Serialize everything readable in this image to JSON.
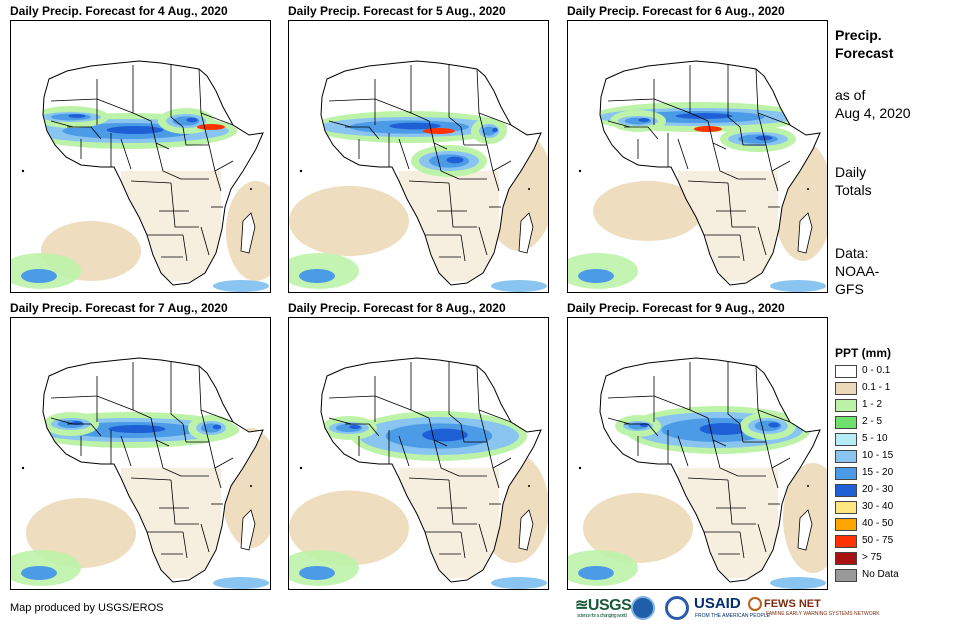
{
  "panels": [
    {
      "title": "Daily Precip. Forecast for 4 Aug., 2020",
      "day": 4
    },
    {
      "title": "Daily Precip. Forecast for 5 Aug., 2020",
      "day": 5
    },
    {
      "title": "Daily Precip. Forecast for 6 Aug., 2020",
      "day": 6
    },
    {
      "title": "Daily Precip. Forecast for 7 Aug., 2020",
      "day": 7
    },
    {
      "title": "Daily Precip. Forecast for 8 Aug., 2020",
      "day": 8
    },
    {
      "title": "Daily Precip. Forecast for 9 Aug., 2020",
      "day": 9
    }
  ],
  "sidebar": {
    "title_line1": "Precip.",
    "title_line2": "Forecast",
    "asof_line1": "as of",
    "asof_line2": "Aug 4, 2020",
    "totals_line1": "Daily",
    "totals_line2": "Totals",
    "data_line1": "Data:",
    "data_line2": "NOAA-",
    "data_line3": "GFS"
  },
  "legend": {
    "title": "PPT (mm)",
    "items": [
      {
        "label": "0 - 0.1",
        "color": "#ffffff"
      },
      {
        "label": "0.1 - 1",
        "color": "#ecd9b8"
      },
      {
        "label": "1 - 2",
        "color": "#bdf3a8"
      },
      {
        "label": "2 - 5",
        "color": "#6fe06c"
      },
      {
        "label": "5 - 10",
        "color": "#b6ecf6"
      },
      {
        "label": "10 - 15",
        "color": "#89c5f0"
      },
      {
        "label": "15 - 20",
        "color": "#4c9be6"
      },
      {
        "label": "20 - 30",
        "color": "#1f5fd6"
      },
      {
        "label": "30 - 40",
        "color": "#ffe680"
      },
      {
        "label": "40 - 50",
        "color": "#ffa500"
      },
      {
        "label": "50 - 75",
        "color": "#ff3300"
      },
      {
        "label": "> 75",
        "color": "#aa1111"
      },
      {
        "label": "No Data",
        "color": "#999999"
      }
    ]
  },
  "footer": {
    "credit": "Map produced by USGS/EROS",
    "logo_usgs": "≊USGS",
    "logo_usgs_tag": "science for a changing world",
    "logo_usaid": "USAID",
    "logo_usaid_tag": "FROM THE AMERICAN PEOPLE",
    "logo_fews": "FEWS NET",
    "logo_fews_tag": "FAMINE EARLY WARNING SYSTEMS NETWORK"
  }
}
